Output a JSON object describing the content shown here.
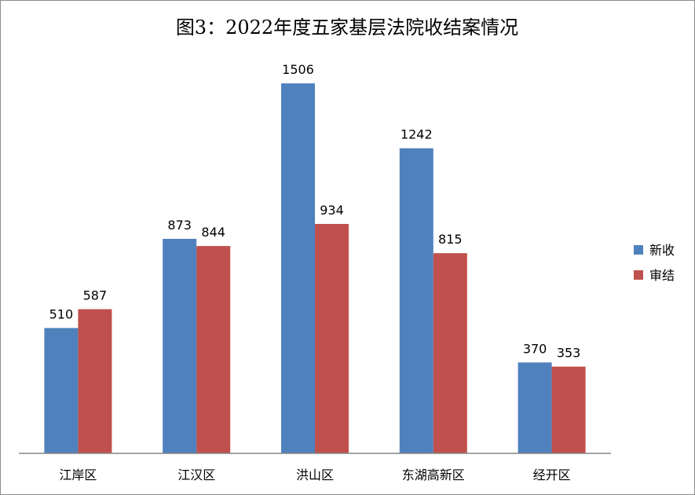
{
  "chart_data": {
    "type": "bar",
    "title": "图3：2022年度五家基层法院收结案情况",
    "categories": [
      "江岸区",
      "江汉区",
      "洪山区",
      "东湖高新区",
      "经开区"
    ],
    "series": [
      {
        "name": "新收",
        "values": [
          510,
          873,
          1506,
          1242,
          370
        ],
        "color": "#4f81bd"
      },
      {
        "name": "审结",
        "values": [
          587,
          844,
          934,
          815,
          353
        ],
        "color": "#c0504d"
      }
    ],
    "ylim": [
      0,
      1600
    ],
    "grid": false,
    "legend_position": "right"
  }
}
